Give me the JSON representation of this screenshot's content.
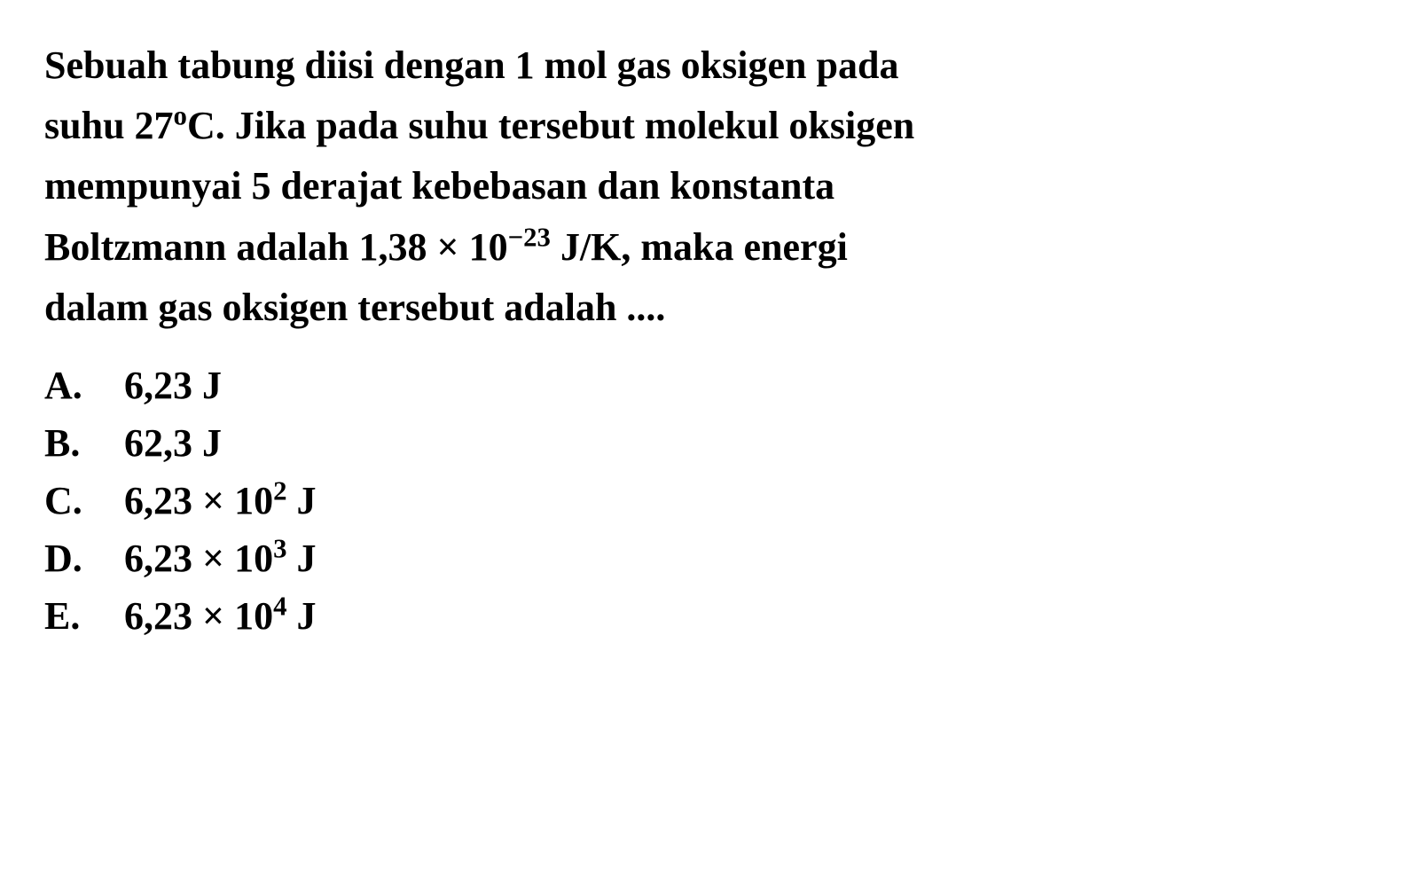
{
  "question": {
    "line1": "Sebuah tabung diisi dengan 1 mol gas oksigen pada",
    "line2_part1": "suhu 27",
    "line2_degree": "o",
    "line2_part2": "C. Jika pada suhu tersebut molekul oksigen",
    "line3": "mempunyai 5 derajat kebebasan dan konstanta",
    "line4_part1": "Boltzmann adalah 1,38 × 10",
    "line4_exp": "−23",
    "line4_part2": " J/K, maka energi",
    "line5": "dalam gas oksigen tersebut adalah ...."
  },
  "options": {
    "a": {
      "letter": "A.",
      "value": "6,23 J"
    },
    "b": {
      "letter": "B.",
      "value": "62,3 J"
    },
    "c": {
      "letter": "C.",
      "value_part1": "6,23 × 10",
      "exp": "2",
      "value_part2": " J"
    },
    "d": {
      "letter": "D.",
      "value_part1": "6,23 × 10",
      "exp": "3",
      "value_part2": " J"
    },
    "e": {
      "letter": "E.",
      "value_part1": "6,23 × 10",
      "exp": "4",
      "value_part2": " J"
    }
  },
  "style": {
    "background_color": "#ffffff",
    "text_color": "#000000",
    "font_family": "Times New Roman",
    "font_size_pt": 33,
    "font_weight": "bold",
    "line_height": 1.55
  }
}
